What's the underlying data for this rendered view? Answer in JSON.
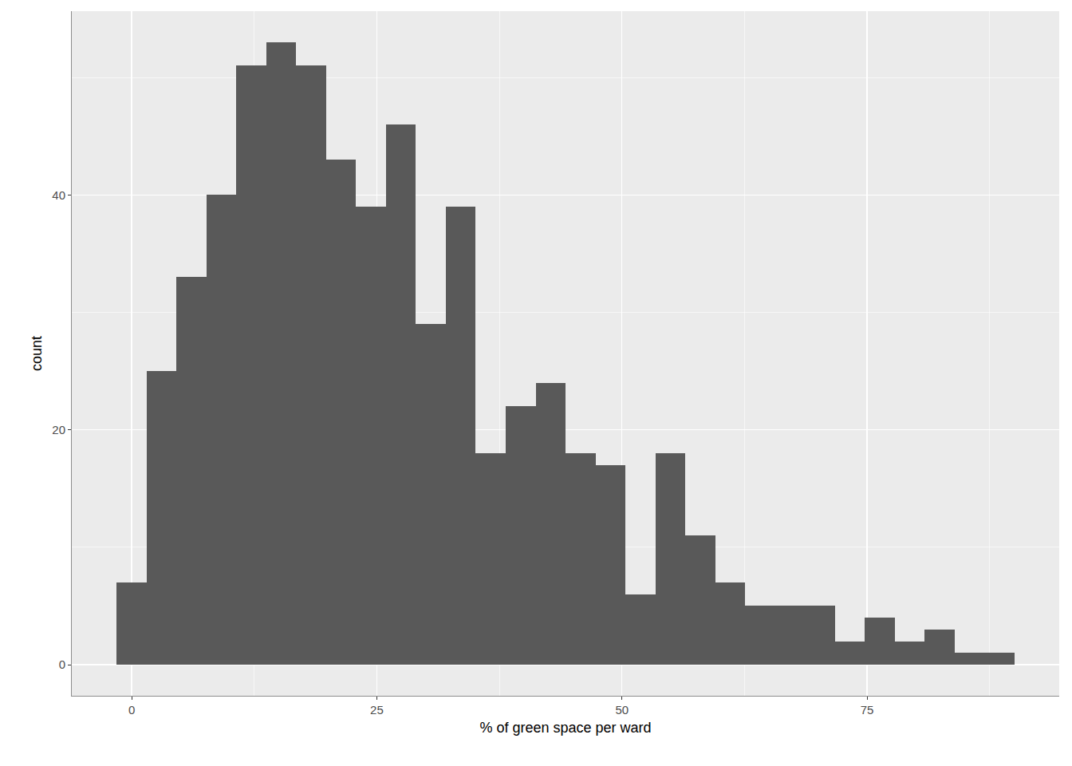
{
  "chart_data": {
    "type": "histogram",
    "xlabel": "% of green space per ward",
    "ylabel": "count",
    "bins": [
      -1.53,
      1.53,
      4.58,
      7.63,
      10.68,
      13.73,
      16.78,
      19.84,
      22.89,
      25.94,
      28.99,
      32.04,
      35.09,
      38.15,
      41.2,
      44.25,
      47.3,
      50.35,
      53.4,
      56.45,
      59.51,
      62.56,
      65.61,
      68.66,
      71.71,
      74.76,
      77.82,
      80.87,
      83.92,
      86.97,
      90.02
    ],
    "values": [
      7,
      25,
      33,
      40,
      51,
      53,
      51,
      43,
      39,
      46,
      29,
      39,
      18,
      22,
      24,
      18,
      17,
      6,
      18,
      11,
      7,
      5,
      5,
      5,
      2,
      4,
      2,
      3,
      1,
      1
    ],
    "color": "#595959",
    "xlim": [
      -6.11,
      94.6
    ],
    "ylim": [
      -2.65,
      55.65
    ],
    "xticks": [
      0,
      25,
      50,
      75
    ],
    "yticks": [
      0,
      20,
      40
    ],
    "grid": true
  }
}
